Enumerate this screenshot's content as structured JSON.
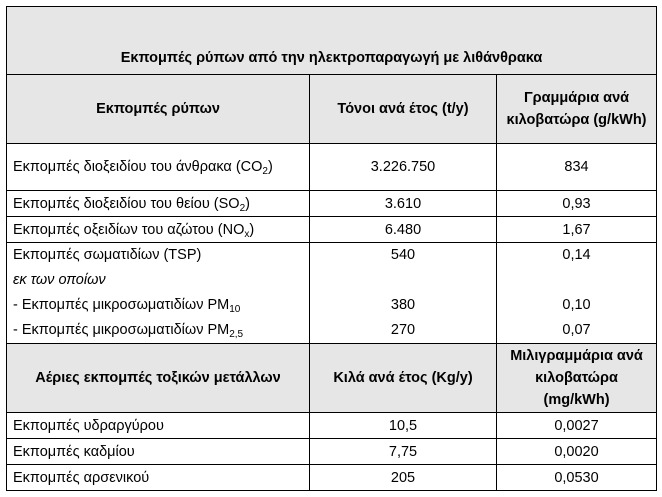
{
  "title": "Εκπομπές ρύπων από την ηλεκτροπαραγωγή με λιθάνθρακα",
  "section1": {
    "headers": [
      "Εκπομπές ρύπων",
      "Τόνοι ανά έτος (t/y)",
      "Γραμμάρια ανά κιλοβατώρα (g/kWh)"
    ],
    "rows": [
      {
        "label": "Εκπομπές διοξειδίου του άνθρακα (CO",
        "sub": "2",
        "suffix": ")",
        "t": "3.226.750",
        "g": "834"
      },
      {
        "label": "Εκπομπές διοξειδίου του θείου (SO",
        "sub": "2",
        "suffix": ")",
        "t": "3.610",
        "g": "0,93"
      },
      {
        "label": "Εκπομπές οξειδίων του αζώτου (NO",
        "sub": "x",
        "suffix": ")",
        "t": "6.480",
        "g": "1,67"
      },
      {
        "label": "Εκπομπές σωματιδίων (TSP)",
        "t": "540",
        "g": "0,14"
      },
      {
        "label": "εκ των οποίων"
      },
      {
        "label": "- Εκπομπές μικροσωματιδίων PM",
        "sub": "10",
        "t": "380",
        "g": "0,10"
      },
      {
        "label": "- Εκπομπές μικροσωματιδίων PM",
        "sub": "2,5",
        "t": "270",
        "g": "0,07"
      }
    ]
  },
  "section2": {
    "headers": [
      "Αέριες εκπομπές τοξικών μετάλλων",
      "Κιλά ανά έτος (Kg/y)",
      "Μιλιγραμμάρια ανά κιλοβατώρα (mg/kWh)"
    ],
    "rows": [
      {
        "label": "Εκπομπές υδραργύρου",
        "k": "10,5",
        "m": "0,0027"
      },
      {
        "label": "Εκπομπές καδμίου",
        "k": "7,75",
        "m": "0,0020"
      },
      {
        "label": "Εκπομπές αρσενικού",
        "k": "205",
        "m": "0,0530"
      }
    ]
  }
}
